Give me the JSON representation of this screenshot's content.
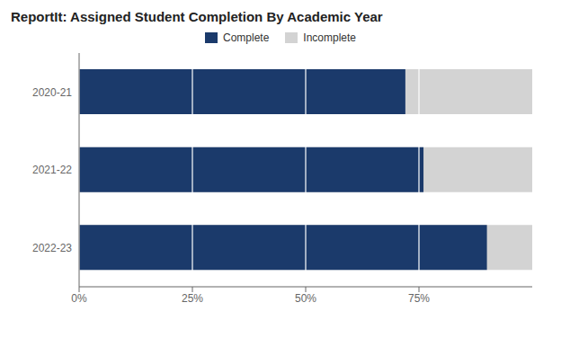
{
  "chart_data": {
    "type": "bar",
    "orientation": "horizontal",
    "title": "ReportIt: Assigned Student Completion By Academic Year",
    "categories": [
      "2022-23",
      "2021-22",
      "2020-21"
    ],
    "series": [
      {
        "name": "Complete",
        "color": "#1B3A6B",
        "values": [
          0.9,
          0.76,
          0.72
        ]
      },
      {
        "name": "Incomplete",
        "color": "#D3D3D3",
        "values": [
          1.0,
          1.0,
          1.0
        ]
      }
    ],
    "stacked": false,
    "xlim": [
      0,
      1.0
    ],
    "xticks": [
      {
        "value": 0,
        "label": "0%"
      },
      {
        "value": 0.25,
        "label": "25%"
      },
      {
        "value": 0.5,
        "label": "50%"
      },
      {
        "value": 0.75,
        "label": "75%"
      }
    ],
    "grid": true,
    "legend": "top"
  }
}
